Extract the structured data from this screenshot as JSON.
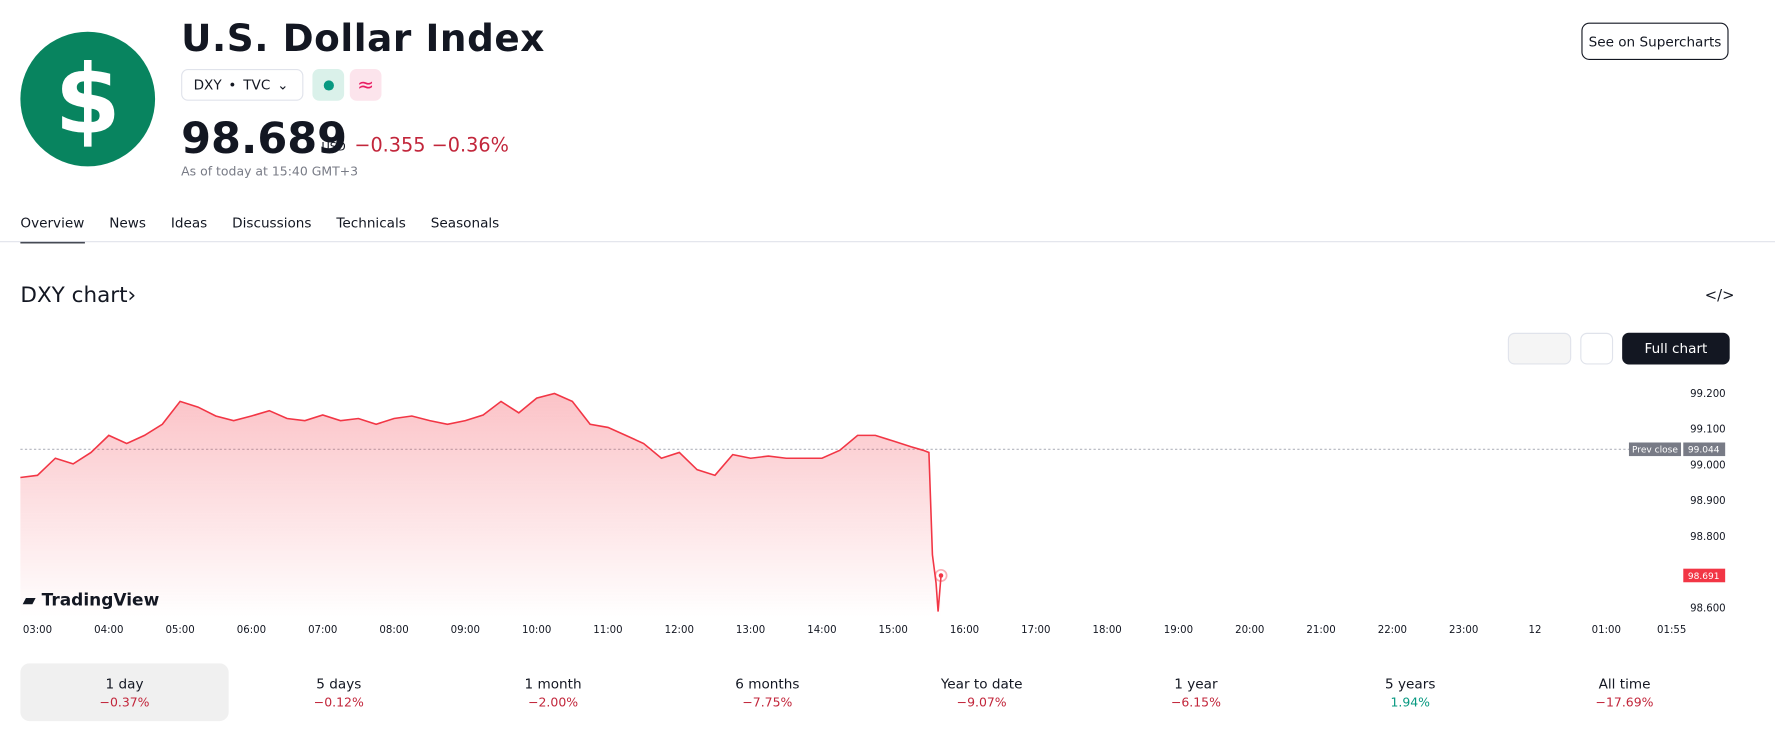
{
  "header": {
    "logo_symbol": "$",
    "title": "U.S. Dollar Index",
    "symbol": "DXY",
    "exchange": "TVC",
    "price": "98.689",
    "currency": "USD",
    "change": "−0.355",
    "change_percent": "−0.36%",
    "timestamp": "As of today at 15:40 GMT+3",
    "button": "See on Supercharts"
  },
  "tabs": [
    "Overview",
    "News",
    "Ideas",
    "Discussions",
    "Technicals",
    "Seasonals"
  ],
  "chart_section": {
    "title": "DXY chart",
    "full_chart": "Full chart",
    "watermark": "TradingView"
  },
  "periods": [
    {
      "name": "1 day",
      "change": "−0.37%"
    },
    {
      "name": "5 days",
      "change": "−0.12%"
    },
    {
      "name": "1 month",
      "change": "−2.00%"
    },
    {
      "name": "6 months",
      "change": "−7.75%"
    },
    {
      "name": "Year to date",
      "change": "−9.07%"
    },
    {
      "name": "1 year",
      "change": "−6.15%"
    },
    {
      "name": "5 years",
      "change": "1.94%"
    },
    {
      "name": "All time",
      "change": "−17.69%"
    }
  ],
  "chart_data": {
    "type": "line",
    "color": "#f23645",
    "x": [
      2.76,
      3,
      3.25,
      3.5,
      3.75,
      4,
      4.25,
      4.5,
      4.75,
      5,
      5.25,
      5.5,
      5.75,
      6,
      6.25,
      6.5,
      6.75,
      7,
      7.25,
      7.5,
      7.75,
      8,
      8.25,
      8.5,
      8.75,
      9,
      9.25,
      9.5,
      9.75,
      10,
      10.25,
      10.5,
      10.75,
      11,
      11.25,
      11.5,
      11.75,
      12,
      12.25,
      12.5,
      12.75,
      13,
      13.25,
      13.5,
      13.75,
      14,
      14.25,
      14.5,
      14.75,
      15,
      15.25,
      15.42,
      15.5,
      15.55,
      15.6,
      15.63,
      15.67
    ],
    "values": [
      98.965,
      98.971,
      99.019,
      99.003,
      99.035,
      99.083,
      99.06,
      99.083,
      99.114,
      99.178,
      99.162,
      99.137,
      99.124,
      99.137,
      99.152,
      99.13,
      99.124,
      99.14,
      99.124,
      99.13,
      99.114,
      99.13,
      99.137,
      99.124,
      99.114,
      99.124,
      99.14,
      99.178,
      99.146,
      99.187,
      99.2,
      99.178,
      99.114,
      99.105,
      99.083,
      99.06,
      99.019,
      99.035,
      98.987,
      98.971,
      99.029,
      99.019,
      99.025,
      99.019,
      99.019,
      99.019,
      99.041,
      99.083,
      99.083,
      99.067,
      99.051,
      99.041,
      99.035,
      98.749,
      98.67,
      98.59,
      98.691
    ],
    "xlim": [
      2.76,
      26
    ],
    "ylim": [
      98.575,
      99.24
    ],
    "xticks": [
      {
        "value": 3,
        "label": "03:00"
      },
      {
        "value": 4,
        "label": "04:00"
      },
      {
        "value": 5,
        "label": "05:00"
      },
      {
        "value": 6,
        "label": "06:00"
      },
      {
        "value": 7,
        "label": "07:00"
      },
      {
        "value": 8,
        "label": "08:00"
      },
      {
        "value": 9,
        "label": "09:00"
      },
      {
        "value": 10,
        "label": "10:00"
      },
      {
        "value": 11,
        "label": "11:00"
      },
      {
        "value": 12,
        "label": "12:00"
      },
      {
        "value": 13,
        "label": "13:00"
      },
      {
        "value": 14,
        "label": "14:00"
      },
      {
        "value": 15,
        "label": "15:00"
      },
      {
        "value": 16,
        "label": "16:00"
      },
      {
        "value": 17,
        "label": "17:00"
      },
      {
        "value": 18,
        "label": "18:00"
      },
      {
        "value": 19,
        "label": "19:00"
      },
      {
        "value": 20,
        "label": "20:00"
      },
      {
        "value": 21,
        "label": "21:00"
      },
      {
        "value": 22,
        "label": "22:00"
      },
      {
        "value": 23,
        "label": "23:00"
      },
      {
        "value": 24,
        "label": "12"
      },
      {
        "value": 25,
        "label": "01:00"
      },
      {
        "value": 25.917,
        "label": "01:55"
      }
    ],
    "yticks": [
      {
        "value": 98.6,
        "label": "98.600"
      },
      {
        "value": 98.8,
        "label": "98.800"
      },
      {
        "value": 98.9,
        "label": "98.900"
      },
      {
        "value": 99,
        "label": "99.000"
      },
      {
        "value": 99.1,
        "label": "99.100"
      },
      {
        "value": 99.2,
        "label": "99.200"
      }
    ],
    "prev_close": {
      "label": "Prev close",
      "value": 99.044
    },
    "last_price": 98.691
  }
}
